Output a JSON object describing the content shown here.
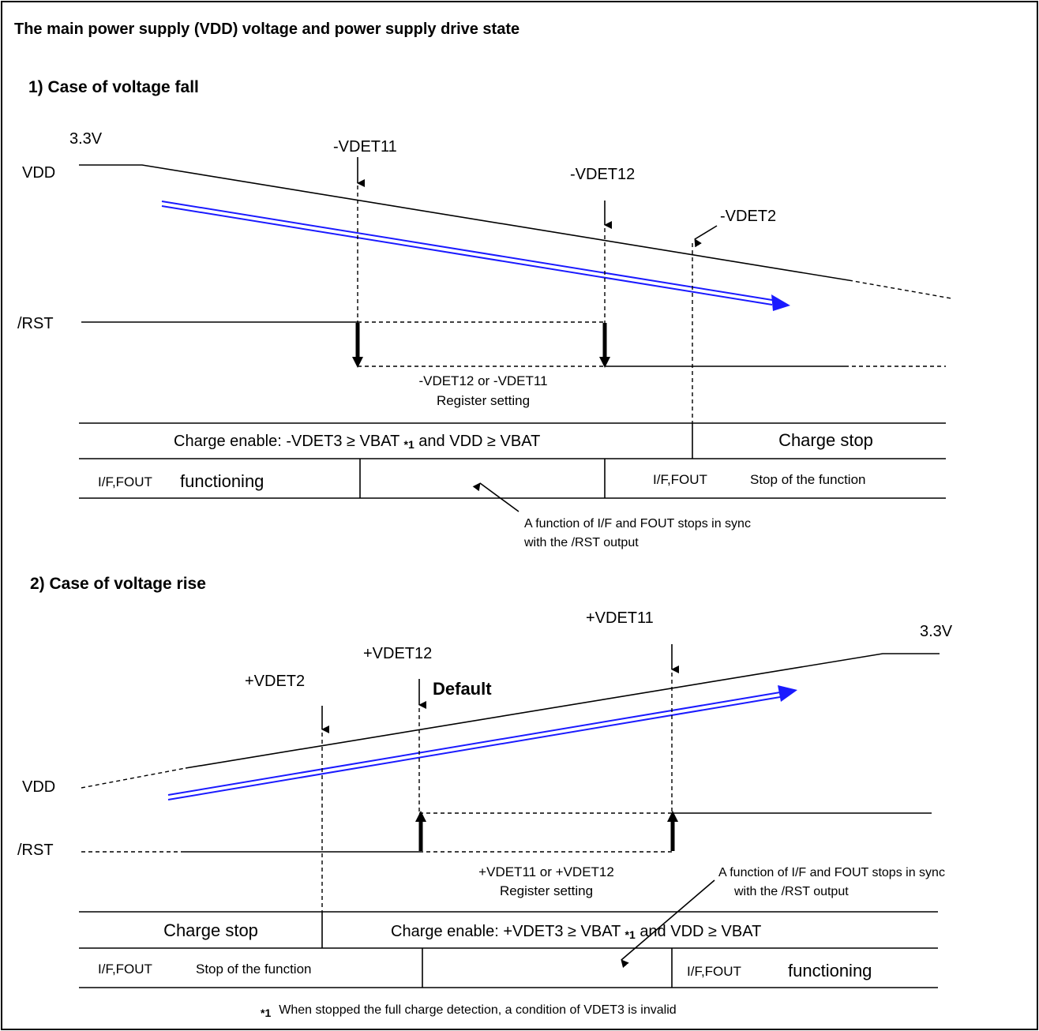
{
  "title": "The main power supply (VDD) voltage and power supply drive state",
  "colors": {
    "trend_arrow": "#1a1aff",
    "line": "#000000",
    "background": "#ffffff"
  },
  "fall": {
    "heading": "1) Case of voltage fall",
    "v33": "3.3V",
    "vdd": "VDD",
    "rst": "/RST",
    "vdet11": "-VDET11",
    "vdet12": "-VDET12",
    "vdet2": "-VDET2",
    "reg_line1": "-VDET12 or -VDET11",
    "reg_line2": "Register setting",
    "charge_enable": "Charge enable: -VDET3 ≥ VBAT",
    "charge_enable_note": "*1",
    "charge_enable_tail": "and VDD ≥ VBAT",
    "charge_stop": "Charge stop",
    "if_fout": "I/F,FOUT",
    "functioning": "functioning",
    "stop_func": "Stop of the function",
    "note1": "A function of I/F and FOUT stops in sync",
    "note2": "with the /RST output"
  },
  "rise": {
    "heading": "2) Case of voltage rise",
    "v33": "3.3V",
    "vdd": "VDD",
    "rst": "/RST",
    "vdet11": "+VDET11",
    "vdet12": "+VDET12",
    "vdet2": "+VDET2",
    "default": "Default",
    "reg_line1": "+VDET11 or +VDET12",
    "reg_line2": "Register setting",
    "note1": "A function of I/F and FOUT stops in sync",
    "note2": "with the /RST output",
    "charge_stop": "Charge stop",
    "charge_enable": "Charge enable: +VDET3 ≥ VBAT",
    "charge_enable_note": "*1",
    "charge_enable_tail": "and VDD ≥ VBAT",
    "if_fout": "I/F,FOUT",
    "stop_func": "Stop of the function",
    "functioning": "functioning"
  },
  "footnote": {
    "mark": "*1",
    "text": "When stopped the full charge detection, a condition of VDET3 is invalid"
  }
}
